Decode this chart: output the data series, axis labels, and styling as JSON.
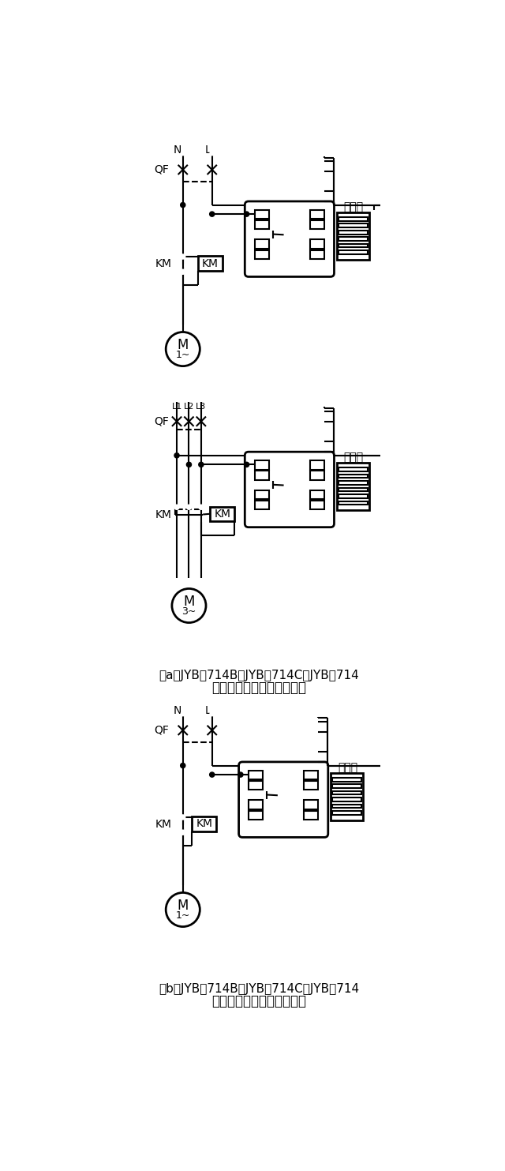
{
  "bg_color": "#ffffff",
  "fig_width": 6.4,
  "fig_height": 14.83,
  "caption_a1": "（a）JYB－714B、JYB－714C、JYB－714",
  "caption_a2": "液位继电器供水方式接线图",
  "caption_b1": "（b）JYB－714B、JYB－714C、JYB－714",
  "caption_b2": "液位继电器排水方式接线图"
}
